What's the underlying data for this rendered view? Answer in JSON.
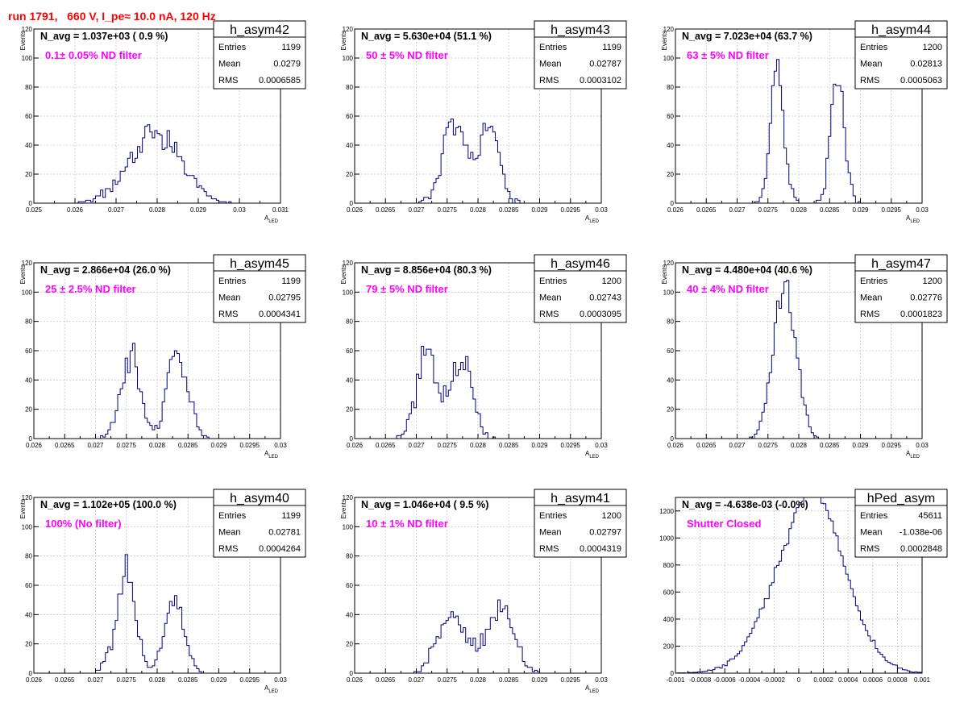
{
  "run_title": "run 1791,   660 V, I_pe≈ 10.0 nA, 120 Hz",
  "colors": {
    "histogram": "#000080",
    "title": "#ff0000",
    "annotation": "#ff00ff",
    "grid": "#c8c8c8"
  },
  "stat_labels": {
    "entries": "Entries",
    "mean": "Mean",
    "rms": "RMS"
  },
  "chart_data": [
    {
      "type": "histogram",
      "name": "h_asym42",
      "nlabel": "N_avg = 1.037e+03 ( 0.9 %)",
      "filter": "0.1± 0.05% ND filter",
      "stats": {
        "entries": "1199",
        "mean": "0.0279",
        "rms": "0.0006585"
      },
      "ylabel": "Events",
      "xlabel": "A",
      "xlabel_sub": "LED",
      "xlim": [
        0.025,
        0.031
      ],
      "ylim": [
        0,
        120
      ],
      "xticks": [
        0.025,
        0.026,
        0.027,
        0.028,
        0.029,
        0.03,
        0.031
      ],
      "xticklabels": [
        "0.025",
        "0.026",
        "0.027",
        "0.028",
        "0.029",
        "0.03",
        "0.031"
      ],
      "yticks": [
        0,
        20,
        40,
        60,
        80,
        100,
        120
      ],
      "yticklabels": [
        "0",
        "20",
        "40",
        "60",
        "80",
        "100",
        "120"
      ],
      "grid": true,
      "legend": "top-right",
      "peaks": [
        {
          "mu": 0.02795,
          "sigma": 0.00063,
          "count": 1199
        }
      ]
    },
    {
      "type": "histogram",
      "name": "h_asym43",
      "nlabel": "N_avg = 5.630e+04 (51.1 %)",
      "filter": "50 ± 5% ND filter",
      "stats": {
        "entries": "1199",
        "mean": "0.02787",
        "rms": "0.0003102"
      },
      "ylabel": "Events",
      "xlabel": "A",
      "xlabel_sub": "LED",
      "xlim": [
        0.026,
        0.03
      ],
      "ylim": [
        0,
        120
      ],
      "xticks": [
        0.026,
        0.0265,
        0.027,
        0.0275,
        0.028,
        0.0285,
        0.029,
        0.0295,
        0.03
      ],
      "xticklabels": [
        "0.026",
        "0.0265",
        "0.027",
        "0.0275",
        "0.028",
        "0.0285",
        "0.029",
        "0.0295",
        "0.03"
      ],
      "yticks": [
        0,
        20,
        40,
        60,
        80,
        100,
        120
      ],
      "yticklabels": [
        "0",
        "20",
        "40",
        "60",
        "80",
        "100",
        "120"
      ],
      "grid": true,
      "legend": "top-right",
      "peaks": [
        {
          "mu": 0.02761,
          "sigma": 0.00018,
          "count": 640
        },
        {
          "mu": 0.02817,
          "sigma": 0.00017,
          "count": 560
        }
      ]
    },
    {
      "type": "histogram",
      "name": "h_asym44",
      "nlabel": "N_avg = 7.023e+04 (63.7 %)",
      "filter": "63 ± 5% ND filter",
      "stats": {
        "entries": "1200",
        "mean": "0.02813",
        "rms": "0.0005063"
      },
      "ylabel": "Events",
      "xlabel": "A",
      "xlabel_sub": "LED",
      "xlim": [
        0.026,
        0.03
      ],
      "ylim": [
        0,
        120
      ],
      "xticks": [
        0.026,
        0.0265,
        0.027,
        0.0275,
        0.028,
        0.0285,
        0.029,
        0.0295,
        0.03
      ],
      "xticklabels": [
        "0.026",
        "0.0265",
        "0.027",
        "0.0275",
        "0.028",
        "0.0285",
        "0.029",
        "0.0295",
        "0.03"
      ],
      "yticks": [
        0,
        20,
        40,
        60,
        80,
        100,
        120
      ],
      "yticklabels": [
        "0",
        "20",
        "40",
        "60",
        "80",
        "100",
        "120"
      ],
      "grid": true,
      "legend": "top-right",
      "peaks": [
        {
          "mu": 0.02765,
          "sigma": 0.00011,
          "count": 600
        },
        {
          "mu": 0.02863,
          "sigma": 0.00011,
          "count": 600
        }
      ]
    },
    {
      "type": "histogram",
      "name": "h_asym45",
      "nlabel": "N_avg = 2.866e+04 (26.0 %)",
      "filter": "25 ± 2.5% ND filter",
      "stats": {
        "entries": "1199",
        "mean": "0.02795",
        "rms": "0.0004341"
      },
      "ylabel": "Events",
      "xlabel": "A",
      "xlabel_sub": "LED",
      "xlim": [
        0.026,
        0.03
      ],
      "ylim": [
        0,
        120
      ],
      "xticks": [
        0.026,
        0.0265,
        0.027,
        0.0275,
        0.028,
        0.0285,
        0.029,
        0.0295,
        0.03
      ],
      "xticklabels": [
        "0.026",
        "0.0265",
        "0.027",
        "0.0275",
        "0.028",
        "0.0285",
        "0.029",
        "0.0295",
        "0.03"
      ],
      "yticks": [
        0,
        20,
        40,
        60,
        80,
        100,
        120
      ],
      "yticklabels": [
        "0",
        "20",
        "40",
        "60",
        "80",
        "100",
        "120"
      ],
      "grid": true,
      "legend": "top-right",
      "peaks": [
        {
          "mu": 0.02757,
          "sigma": 0.00016,
          "count": 560
        },
        {
          "mu": 0.02833,
          "sigma": 0.00017,
          "count": 640
        }
      ]
    },
    {
      "type": "histogram",
      "name": "h_asym46",
      "nlabel": "N_avg = 8.856e+04 (80.3 %)",
      "filter": "79 ± 5% ND filter",
      "stats": {
        "entries": "1200",
        "mean": "0.02743",
        "rms": "0.0003095"
      },
      "ylabel": "Events",
      "xlabel": "A",
      "xlabel_sub": "LED",
      "xlim": [
        0.026,
        0.03
      ],
      "ylim": [
        0,
        120
      ],
      "xticks": [
        0.026,
        0.0265,
        0.027,
        0.0275,
        0.028,
        0.0285,
        0.029,
        0.0295,
        0.03
      ],
      "xticklabels": [
        "0.026",
        "0.0265",
        "0.027",
        "0.0275",
        "0.028",
        "0.0285",
        "0.029",
        "0.0295",
        "0.03"
      ],
      "yticks": [
        0,
        20,
        40,
        60,
        80,
        100,
        120
      ],
      "yticklabels": [
        "0",
        "20",
        "40",
        "60",
        "80",
        "100",
        "120"
      ],
      "grid": true,
      "legend": "top-right",
      "peaks": [
        {
          "mu": 0.02717,
          "sigma": 0.00016,
          "count": 620
        },
        {
          "mu": 0.02773,
          "sigma": 0.00017,
          "count": 580
        }
      ]
    },
    {
      "type": "histogram",
      "name": "h_asym47",
      "nlabel": "N_avg = 4.480e+04 (40.6 %)",
      "filter": "40 ± 4% ND filter",
      "stats": {
        "entries": "1200",
        "mean": "0.02776",
        "rms": "0.0001823"
      },
      "ylabel": "Events",
      "xlabel": "A",
      "xlabel_sub": "LED",
      "xlim": [
        0.026,
        0.03
      ],
      "ylim": [
        0,
        120
      ],
      "xticks": [
        0.026,
        0.0265,
        0.027,
        0.0275,
        0.028,
        0.0285,
        0.029,
        0.0295,
        0.03
      ],
      "xticklabels": [
        "0.026",
        "0.0265",
        "0.027",
        "0.0275",
        "0.028",
        "0.0285",
        "0.029",
        "0.0295",
        "0.03"
      ],
      "yticks": [
        0,
        20,
        40,
        60,
        80,
        100,
        120
      ],
      "yticklabels": [
        "0",
        "20",
        "40",
        "60",
        "80",
        "100",
        "120"
      ],
      "grid": true,
      "legend": "top-right",
      "peaks": [
        {
          "mu": 0.02777,
          "sigma": 0.00018,
          "count": 1200
        }
      ]
    },
    {
      "type": "histogram",
      "name": "h_asym40",
      "nlabel": "N_avg = 1.102e+05 (100.0 %)",
      "filter": "100% (No filter)",
      "stats": {
        "entries": "1199",
        "mean": "0.02781",
        "rms": "0.0004264"
      },
      "ylabel": "Events",
      "xlabel": "A",
      "xlabel_sub": "LED",
      "xlim": [
        0.026,
        0.03
      ],
      "ylim": [
        0,
        120
      ],
      "xticks": [
        0.026,
        0.0265,
        0.027,
        0.0275,
        0.028,
        0.0285,
        0.029,
        0.0295,
        0.03
      ],
      "xticklabels": [
        "0.026",
        "0.0265",
        "0.027",
        "0.0275",
        "0.028",
        "0.0285",
        "0.029",
        "0.0295",
        "0.03"
      ],
      "yticks": [
        0,
        20,
        40,
        60,
        80,
        100,
        120
      ],
      "yticklabels": [
        "0",
        "20",
        "40",
        "60",
        "80",
        "100",
        "120"
      ],
      "grid": true,
      "legend": "top-right",
      "peaks": [
        {
          "mu": 0.02749,
          "sigma": 0.00016,
          "count": 700
        },
        {
          "mu": 0.02828,
          "sigma": 0.00015,
          "count": 500
        }
      ]
    },
    {
      "type": "histogram",
      "name": "h_asym41",
      "nlabel": "N_avg = 1.046e+04 ( 9.5 %)",
      "filter": "10 ± 1% ND filter",
      "stats": {
        "entries": "1200",
        "mean": "0.02797",
        "rms": "0.0004319"
      },
      "ylabel": "Events",
      "xlabel": "A",
      "xlabel_sub": "LED",
      "xlim": [
        0.026,
        0.03
      ],
      "ylim": [
        0,
        120
      ],
      "xticks": [
        0.026,
        0.0265,
        0.027,
        0.0275,
        0.028,
        0.0285,
        0.029,
        0.0295,
        0.03
      ],
      "xticklabels": [
        "0.026",
        "0.0265",
        "0.027",
        "0.0275",
        "0.028",
        "0.0285",
        "0.029",
        "0.0295",
        "0.03"
      ],
      "yticks": [
        0,
        20,
        40,
        60,
        80,
        100,
        120
      ],
      "yticklabels": [
        "0",
        "20",
        "40",
        "60",
        "80",
        "100",
        "120"
      ],
      "grid": true,
      "legend": "top-right",
      "peaks": [
        {
          "mu": 0.02758,
          "sigma": 0.00022,
          "count": 600
        },
        {
          "mu": 0.02835,
          "sigma": 0.00022,
          "count": 600
        }
      ]
    },
    {
      "type": "histogram",
      "name": "hPed_asym",
      "nlabel": "N_avg = -4.638e-03 (-0.0%)",
      "filter": "Shutter Closed",
      "stats": {
        "entries": "45611",
        "mean": "-1.038e-06",
        "rms": "0.0002848"
      },
      "ylabel": "",
      "xlabel": "",
      "xlabel_sub": "",
      "xlim": [
        -0.001,
        0.001
      ],
      "ylim": [
        0,
        1300
      ],
      "xticks": [
        -0.001,
        -0.0008,
        -0.0006,
        -0.0004,
        -0.0002,
        0,
        0.0002,
        0.0004,
        0.0006,
        0.0008,
        0.001
      ],
      "xticklabels": [
        "-0.001",
        "-0.0008",
        "-0.0006",
        "-0.0004",
        "-0.0002",
        "0",
        "0.0002",
        "0.0004",
        "0.0006",
        "0.0008",
        "0.001"
      ],
      "yticks": [
        0,
        200,
        400,
        600,
        800,
        1000,
        1200
      ],
      "yticklabels": [
        "0",
        "200",
        "400",
        "600",
        "800",
        "1000",
        "1200"
      ],
      "grid": true,
      "legend": "top-right",
      "peaks": [
        {
          "mu": 5e-05,
          "sigma": 0.00028,
          "count": 45611,
          "skew": true
        }
      ]
    }
  ]
}
